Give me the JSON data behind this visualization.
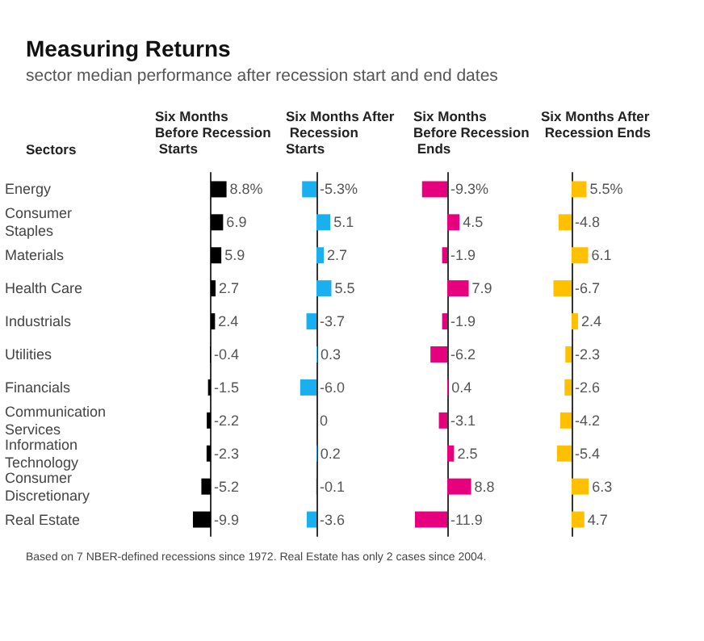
{
  "chart_data": [
    {
      "type": "bar",
      "orientation": "horizontal",
      "title": "Measuring Returns",
      "subtitle": "sector median performance after recession start and end dates",
      "ylabel": "Sectors",
      "xlabel": "Six Months Before Recession Starts",
      "annotations": [
        "Based on 7 NBER-defined recessions since 1972. Real Estate has only 2 cases since 2004."
      ],
      "tick_labels": "y",
      "categories": [
        "Energy",
        "Consumer Staples",
        "Materials",
        "Health Care",
        "Industrials",
        "Utilities",
        "Financials",
        "Communication Services",
        "Information Technology",
        "Consumer Discretionary",
        "Real Estate"
      ],
      "color": "#000000",
      "values": [
        8.8,
        6.9,
        5.9,
        2.7,
        2.4,
        -0.4,
        -1.5,
        -2.2,
        -2.3,
        -5.2,
        -9.9
      ],
      "value_labels": [
        "8.8%",
        "6.9",
        "5.9",
        "2.7",
        "2.4",
        "-0.4",
        "-1.5",
        "-2.2",
        "-2.3",
        "-5.2",
        "-9.9"
      ]
    },
    {
      "type": "bar",
      "orientation": "horizontal",
      "xlabel": "Six Months After Recession Starts",
      "tick_labels": false,
      "categories": [
        "Energy",
        "Consumer Staples",
        "Materials",
        "Health Care",
        "Industrials",
        "Utilities",
        "Financials",
        "Communication Services",
        "Information Technology",
        "Consumer Discretionary",
        "Real Estate"
      ],
      "color": "#1ab0f0",
      "values": [
        -5.3,
        5.1,
        2.7,
        5.5,
        -3.7,
        0.3,
        -6.0,
        0,
        0.2,
        -0.1,
        -3.6
      ],
      "value_labels": [
        "-5.3%",
        "5.1",
        "2.7",
        "5.5",
        "-3.7",
        "0.3",
        "-6.0",
        "0",
        "0.2",
        "-0.1",
        "-3.6"
      ]
    },
    {
      "type": "bar",
      "orientation": "horizontal",
      "xlabel": "Six Months Before Recession Ends",
      "tick_labels": false,
      "categories": [
        "Energy",
        "Consumer Staples",
        "Materials",
        "Health Care",
        "Industrials",
        "Utilities",
        "Financials",
        "Communication Services",
        "Information Technology",
        "Consumer Discretionary",
        "Real Estate"
      ],
      "color": "#e6007e",
      "values": [
        -9.3,
        4.5,
        -1.9,
        7.9,
        -1.9,
        -6.2,
        0.4,
        -3.1,
        2.5,
        8.8,
        -11.9
      ],
      "value_labels": [
        "-9.3%",
        "4.5",
        "-1.9",
        "7.9",
        "-1.9",
        "-6.2",
        "0.4",
        "-3.1",
        "2.5",
        "8.8",
        "-11.9"
      ]
    },
    {
      "type": "bar",
      "orientation": "horizontal",
      "xlabel": "Six Months After Recession Ends",
      "tick_labels": false,
      "categories": [
        "Energy",
        "Consumer Staples",
        "Materials",
        "Health Care",
        "Industrials",
        "Utilities",
        "Financials",
        "Communication Services",
        "Information Technology",
        "Consumer Discretionary",
        "Real Estate"
      ],
      "color": "#ffc000",
      "values": [
        5.5,
        -4.8,
        6.1,
        -6.7,
        2.4,
        -2.3,
        -2.6,
        -4.2,
        -5.4,
        6.3,
        4.7
      ],
      "value_labels": [
        "5.5%",
        "-4.8",
        "6.1",
        "-6.7",
        "2.4",
        "-2.3",
        "-2.6",
        "-4.2",
        "-5.4",
        "6.3",
        "4.7"
      ]
    }
  ]
}
